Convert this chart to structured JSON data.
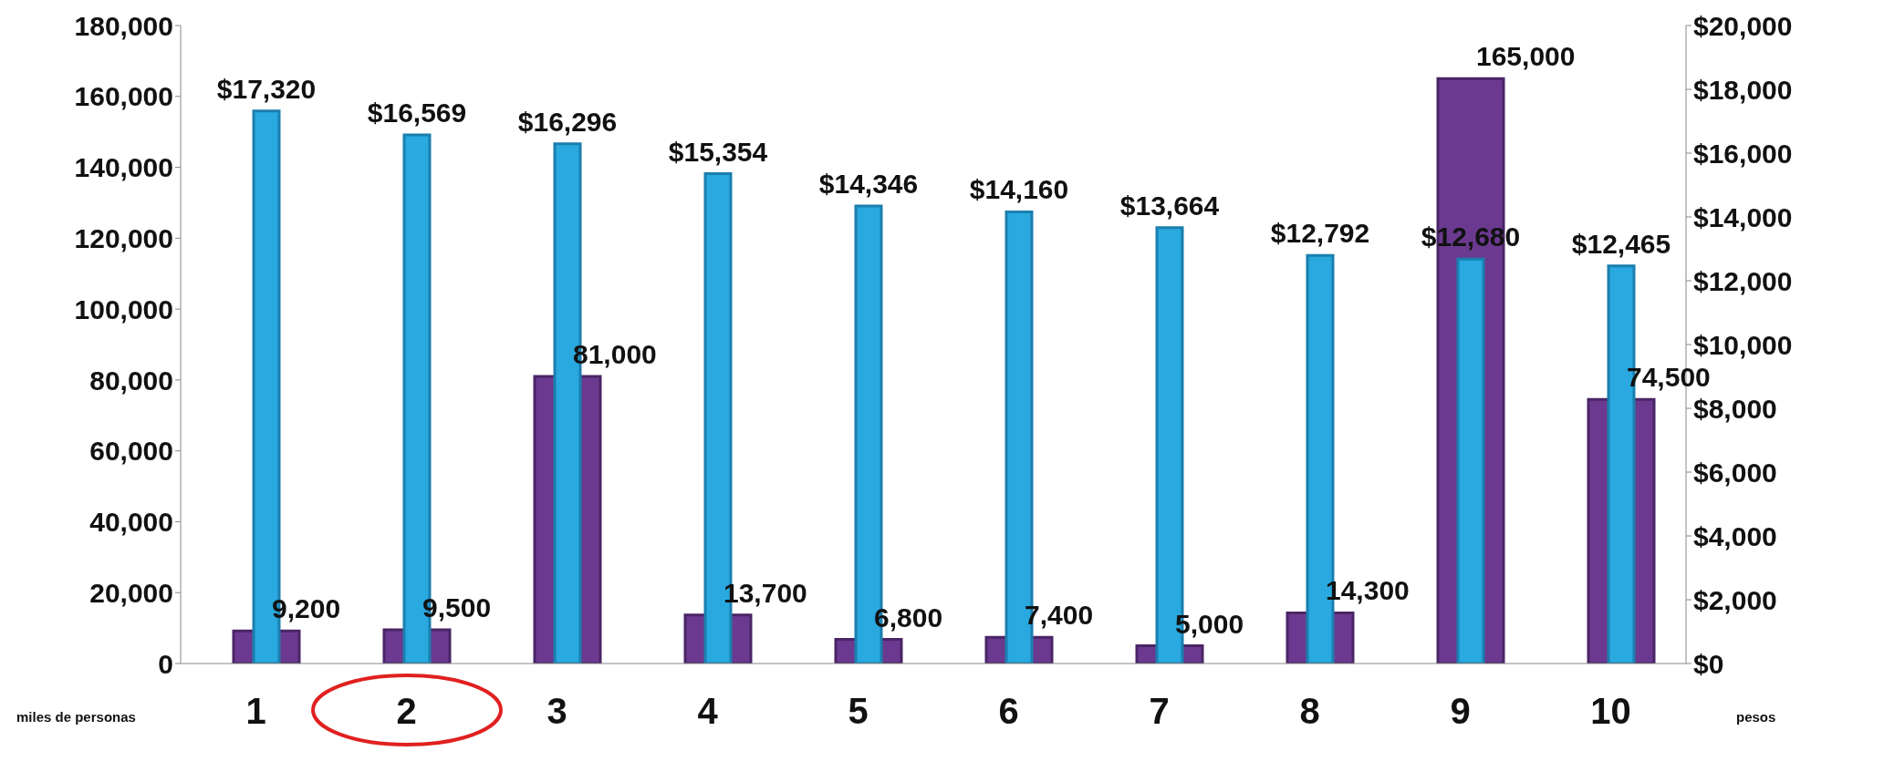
{
  "chart_data": {
    "type": "bar",
    "categories": [
      "1",
      "2",
      "3",
      "4",
      "5",
      "6",
      "7",
      "8",
      "9",
      "10"
    ],
    "series": [
      {
        "color": "#6b3a90",
        "values": [
          9200,
          9500,
          81000,
          13700,
          6800,
          7400,
          5000,
          14300,
          165000,
          74500
        ],
        "value_labels": [
          "9,200",
          "9,500",
          "81,000",
          "13,700",
          "6,800",
          "7,400",
          "5,000",
          "14,300",
          "165,000",
          "74,500"
        ]
      },
      {
        "color": "#29a9df",
        "axis": "y2",
        "values": [
          17320,
          16569,
          16296,
          15354,
          14346,
          14160,
          13664,
          12792,
          12680,
          12465
        ],
        "value_labels": [
          "$17,320",
          "$16,569",
          "$16,296",
          "$15,354",
          "$14,346",
          "$14,160",
          "$13,664",
          "$12,792",
          "$12,680",
          "$12,465"
        ]
      }
    ],
    "ylabel": "miles de personas",
    "y2label": "pesos",
    "ylim": [
      0,
      180000
    ],
    "yticks": [
      {
        "value": 0,
        "label": "0"
      },
      {
        "value": 20000,
        "label": "20,000"
      },
      {
        "value": 40000,
        "label": "40,000"
      },
      {
        "value": 60000,
        "label": "60,000"
      },
      {
        "value": 80000,
        "label": "80,000"
      },
      {
        "value": 100000,
        "label": "100,000"
      },
      {
        "value": 120000,
        "label": "120,000"
      },
      {
        "value": 140000,
        "label": "140,000"
      },
      {
        "value": 160000,
        "label": "160,000"
      },
      {
        "value": 180000,
        "label": "180,000"
      }
    ],
    "y2lim": [
      0,
      20000
    ],
    "y2ticks": [
      {
        "value": 0,
        "label": "$0"
      },
      {
        "value": 2000,
        "label": "$2,000"
      },
      {
        "value": 4000,
        "label": "$4,000"
      },
      {
        "value": 6000,
        "label": "$6,000"
      },
      {
        "value": 8000,
        "label": "$8,000"
      },
      {
        "value": 10000,
        "label": "$10,000"
      },
      {
        "value": 12000,
        "label": "$12,000"
      },
      {
        "value": 14000,
        "label": "$14,000"
      },
      {
        "value": 16000,
        "label": "$16,000"
      },
      {
        "value": 18000,
        "label": "$18,000"
      },
      {
        "value": 20000,
        "label": "$20,000"
      }
    ],
    "grid": false,
    "legend": false
  }
}
